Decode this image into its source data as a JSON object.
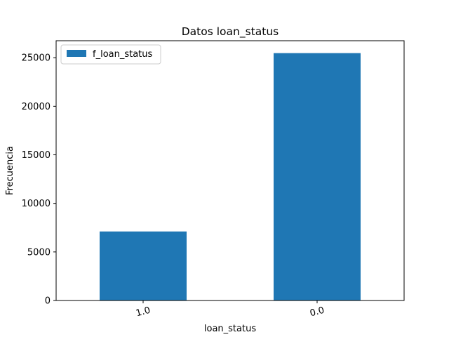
{
  "chart_data": {
    "type": "bar",
    "title": "Datos loan_status",
    "xlabel": "loan_status",
    "ylabel": "Frecuencia",
    "categories": [
      "1.0",
      "0.0"
    ],
    "series": [
      {
        "name": "f_loan_status",
        "values": [
          7108,
          25473
        ],
        "color": "#1f77b4"
      }
    ],
    "ylim": [
      0,
      26750
    ],
    "yticks": [
      0,
      5000,
      10000,
      15000,
      20000,
      25000
    ],
    "xtick_rotation": -15,
    "legend": "top-left",
    "grid": false
  }
}
